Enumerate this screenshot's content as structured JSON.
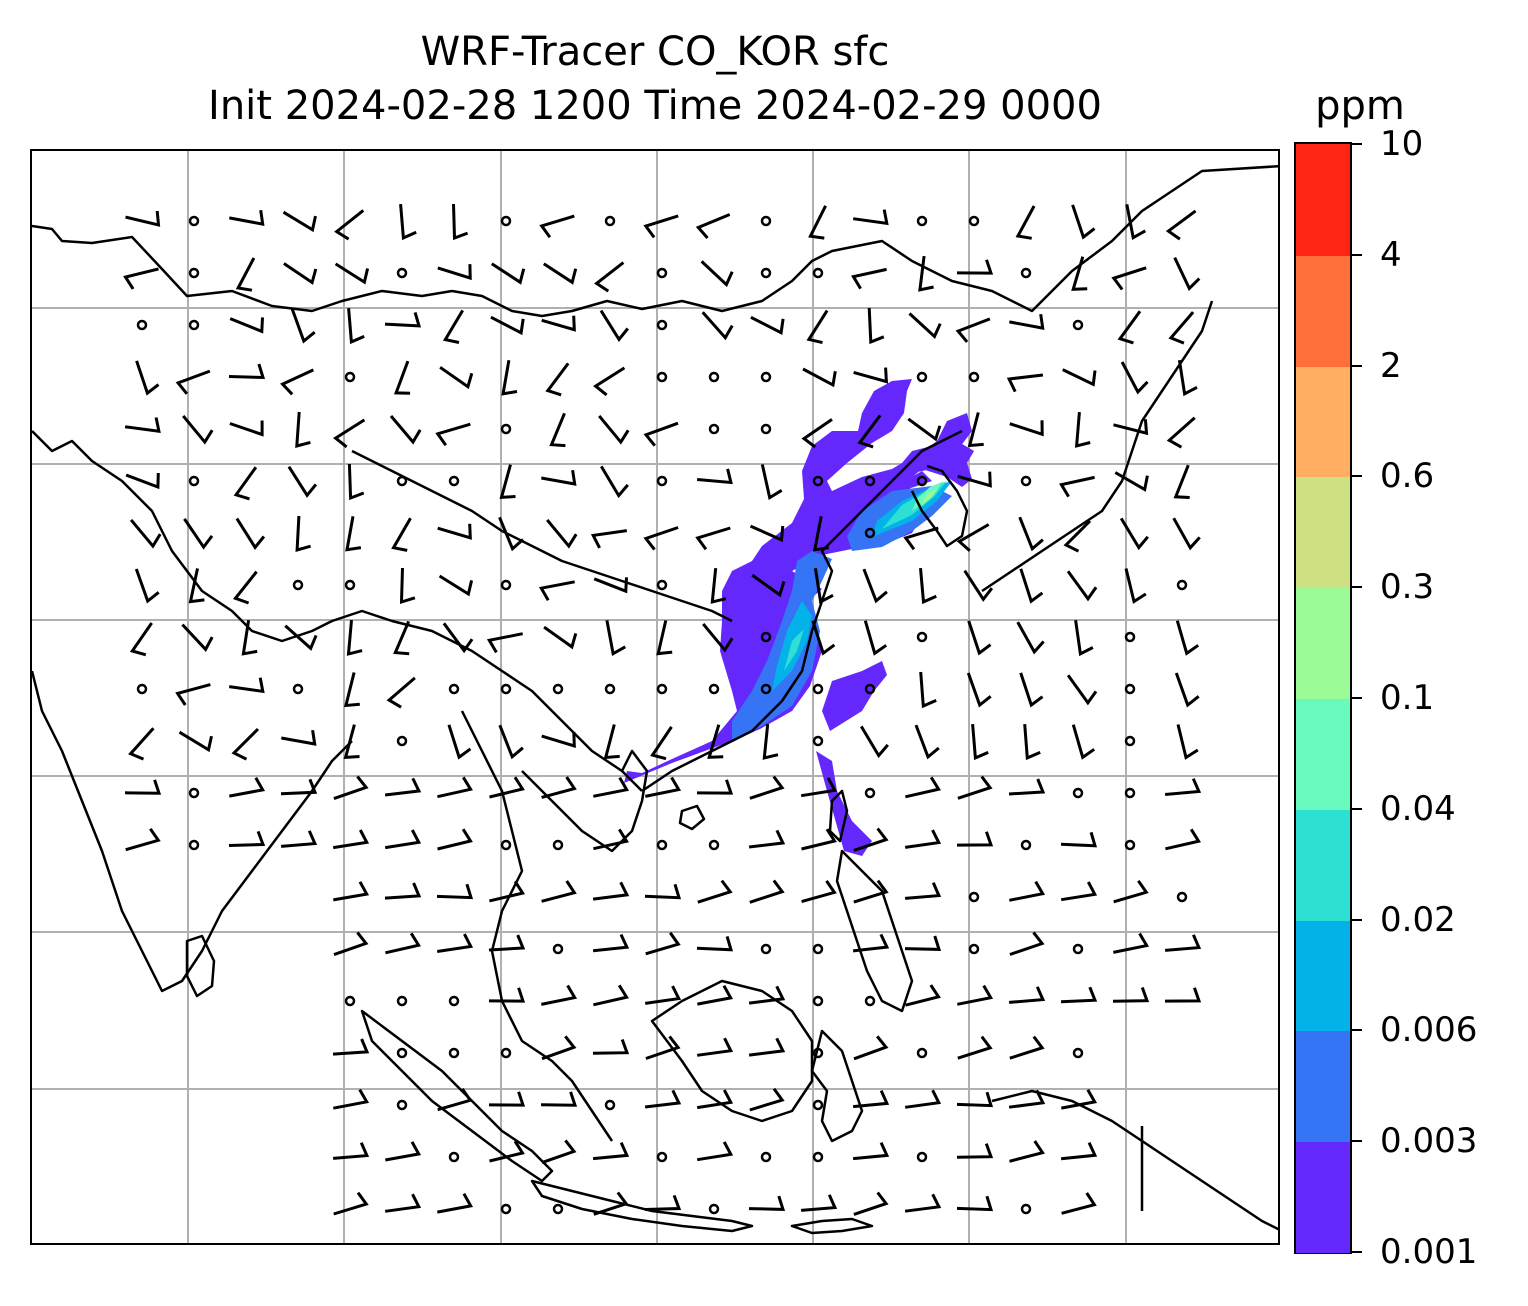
{
  "title": {
    "line1": "WRF-Tracer CO_KOR sfc",
    "line2": "Init 2024-02-28 1200 Time 2024-02-29 0000"
  },
  "colorbar": {
    "unit": "ppm",
    "levels": [
      "0.001",
      "0.003",
      "0.006",
      "0.02",
      "0.04",
      "0.1",
      "0.3",
      "0.6",
      "2",
      "4",
      "10"
    ],
    "colors": [
      "#6528fc",
      "#3474f5",
      "#04b2ea",
      "#2ee0d3",
      "#69fbbe",
      "#9bfc97",
      "#cee182",
      "#ffae62",
      "#ff6f3a",
      "#ff2514"
    ]
  },
  "map": {
    "gridlines": true,
    "coastline_color": "#000000",
    "grid_color": "#b0b0b0",
    "plume_colors": [
      "#6528fc",
      "#3474f5",
      "#04b2ea",
      "#2ee0d3",
      "#69fbbe",
      "#9bfc97"
    ]
  }
}
